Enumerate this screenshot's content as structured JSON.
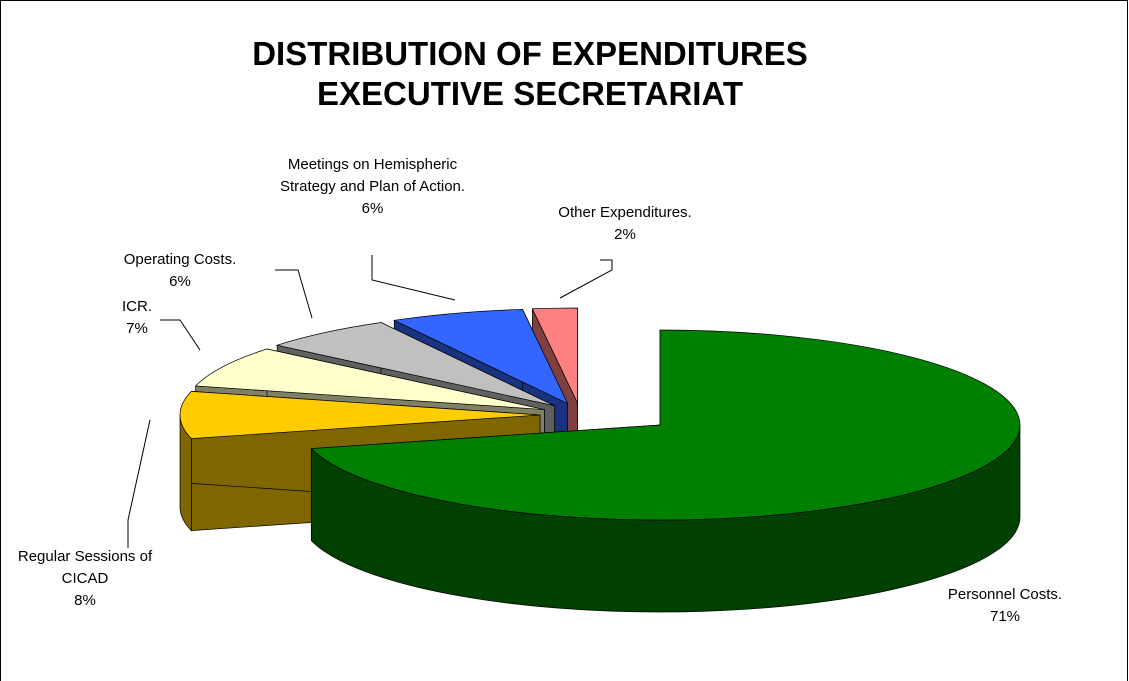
{
  "chart_data": {
    "type": "pie",
    "title": [
      "DISTRIBUTION OF EXPENDITURES",
      "EXECUTIVE SECRETARIAT"
    ],
    "categories": [
      "Personnel Costs.",
      "Regular Sessions of CICAD",
      "ICR.",
      "Operating Costs.",
      "Meetings on Hemispheric Strategy and Plan of Action.",
      "Other Expenditures."
    ],
    "values": [
      71,
      8,
      7,
      6,
      6,
      2
    ],
    "value_labels": [
      "71%",
      "8%",
      "7%",
      "6%",
      "6%",
      "2%"
    ],
    "colors": [
      "#008000",
      "#FFCC00",
      "#FFFFCC",
      "#C0C0C0",
      "#3366FF",
      "#FF8080"
    ]
  }
}
